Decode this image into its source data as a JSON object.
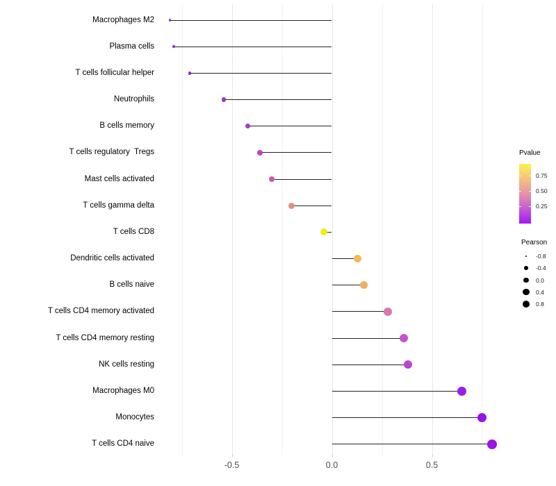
{
  "chart_data": {
    "type": "lollipop",
    "orientation": "horizontal",
    "title": "",
    "xlabel": "",
    "ylabel": "",
    "xlim": [
      -0.88,
      0.9
    ],
    "baseline_x": 0.0,
    "grid": "vertical light-gray lines every 0.25",
    "legend_position": "right",
    "x_major_ticks": [
      {
        "value": -0.5,
        "label": "-0.5"
      },
      {
        "value": 0.0,
        "label": "0.0"
      },
      {
        "value": 0.5,
        "label": "0.5"
      }
    ],
    "x_minor_ticks": [
      -0.75,
      -0.25,
      0.25,
      0.75
    ],
    "points": [
      {
        "label": "Macrophages M2",
        "pearson": -0.81,
        "dot_color": "#8D33DA"
      },
      {
        "label": "Plasma cells",
        "pearson": -0.79,
        "dot_color": "#8C2FDA"
      },
      {
        "label": "T cells follicular helper",
        "pearson": -0.71,
        "dot_color": "#8928DD"
      },
      {
        "label": "Neutrophils",
        "pearson": -0.54,
        "dot_color": "#9935D2"
      },
      {
        "label": "B cells memory",
        "pearson": -0.42,
        "dot_color": "#A53BC9"
      },
      {
        "label": "T cells regulatory  Tregs",
        "pearson": -0.36,
        "dot_color": "#B847C0"
      },
      {
        "label": "Mast cells activated",
        "pearson": -0.3,
        "dot_color": "#C75AB1"
      },
      {
        "label": "T cells gamma delta",
        "pearson": -0.2,
        "dot_color": "#DD9084"
      },
      {
        "label": "T cells CD8",
        "pearson": -0.04,
        "dot_color": "#F0EE12"
      },
      {
        "label": "Dendritic cells activated",
        "pearson": 0.13,
        "dot_color": "#F2BA55"
      },
      {
        "label": "B cells naive",
        "pearson": 0.16,
        "dot_color": "#F1AE61"
      },
      {
        "label": "T cells CD4 memory activated",
        "pearson": 0.28,
        "dot_color": "#D877AC"
      },
      {
        "label": "T cells CD4 memory resting",
        "pearson": 0.36,
        "dot_color": "#C253CA"
      },
      {
        "label": "NK cells resting",
        "pearson": 0.38,
        "dot_color": "#BC44D2"
      },
      {
        "label": "Macrophages M0",
        "pearson": 0.65,
        "dot_color": "#9B1EE8"
      },
      {
        "label": "Monocytes",
        "pearson": 0.75,
        "dot_color": "#9711EE"
      },
      {
        "label": "T cells CD4 naive",
        "pearson": 0.8,
        "dot_color": "#9913EE"
      }
    ],
    "legend": {
      "pvalue": {
        "title": "Pvalue",
        "tick_labels": [
          "0.75",
          "0.50",
          "0.25"
        ],
        "gradient_top_to_bottom": [
          "#FDF24D",
          "#F6C17C",
          "#E593AA",
          "#C45CD0",
          "#A118FB"
        ]
      },
      "pearson": {
        "title": "Pearson",
        "dot_color": "#000000",
        "items": [
          {
            "label": "-0.8",
            "value": -0.8
          },
          {
            "label": "-0.4",
            "value": -0.4
          },
          {
            "label": "0.0",
            "value": 0.0
          },
          {
            "label": "0.4",
            "value": 0.4
          },
          {
            "label": "0.8",
            "value": 0.8
          }
        ]
      }
    },
    "colors": {
      "stem": "#222222",
      "grid_major": "#e7e7e7",
      "grid_minor": "#f2f2f2",
      "axis_text": "#4d4d4d",
      "label_text": "#000000",
      "background": "#ffffff"
    }
  }
}
